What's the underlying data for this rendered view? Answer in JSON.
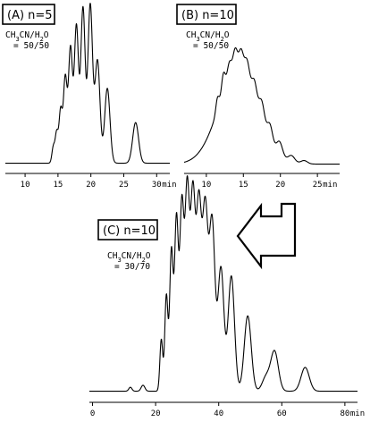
{
  "chart_data": [
    {
      "type": "line",
      "panel_label": "(A) n=5",
      "condition": {
        "line1_prefix": "CH",
        "line1_sub1": "3",
        "line1_mid": "CN/H",
        "line1_sub2": "2",
        "line1_suffix": "O",
        "line2": "= 50/50"
      },
      "xlabel": "min",
      "xlim": [
        7,
        32
      ],
      "ylim": [
        0,
        100
      ],
      "x_ticks": [
        "10",
        "15",
        "20",
        "25",
        "30"
      ],
      "x_tick_values": [
        10,
        15,
        20,
        25,
        30
      ],
      "baseline": 3,
      "peaks": [
        {
          "x": 14.3,
          "h": 10,
          "w": 0.22
        },
        {
          "x": 14.8,
          "h": 18,
          "w": 0.22
        },
        {
          "x": 15.4,
          "h": 32,
          "w": 0.25
        },
        {
          "x": 16.1,
          "h": 52,
          "w": 0.28
        },
        {
          "x": 16.9,
          "h": 70,
          "w": 0.3
        },
        {
          "x": 17.8,
          "h": 84,
          "w": 0.32
        },
        {
          "x": 18.8,
          "h": 95,
          "w": 0.33
        },
        {
          "x": 19.9,
          "h": 97,
          "w": 0.35
        },
        {
          "x": 21.0,
          "h": 63,
          "w": 0.38
        },
        {
          "x": 22.5,
          "h": 46,
          "w": 0.4
        },
        {
          "x": 26.8,
          "h": 25,
          "w": 0.45
        }
      ]
    },
    {
      "type": "line",
      "panel_label": "(B) n=10",
      "condition": {
        "line1_prefix": "CH",
        "line1_sub1": "3",
        "line1_mid": "CN/H",
        "line1_sub2": "2",
        "line1_suffix": "O",
        "line2": "= 50/50"
      },
      "xlabel": "min",
      "xlim": [
        7,
        28
      ],
      "ylim": [
        0,
        100
      ],
      "x_ticks": [
        "10",
        "15",
        "20",
        "25"
      ],
      "x_tick_values": [
        10,
        15,
        20,
        25
      ],
      "baseline": 3,
      "envelope": {
        "x": 14.3,
        "h": 72,
        "w": 2.6
      },
      "peaks": [
        {
          "x": 11.5,
          "h": 10,
          "w": 0.22
        },
        {
          "x": 12.3,
          "h": 15,
          "w": 0.25
        },
        {
          "x": 13.1,
          "h": 12,
          "w": 0.28
        },
        {
          "x": 13.9,
          "h": 16,
          "w": 0.3
        },
        {
          "x": 14.7,
          "h": 15,
          "w": 0.3
        },
        {
          "x": 15.5,
          "h": 14,
          "w": 0.32
        },
        {
          "x": 16.5,
          "h": 13,
          "w": 0.32
        },
        {
          "x": 17.5,
          "h": 14,
          "w": 0.35
        },
        {
          "x": 18.6,
          "h": 12,
          "w": 0.35
        },
        {
          "x": 19.9,
          "h": 10,
          "w": 0.4
        },
        {
          "x": 21.5,
          "h": 5,
          "w": 0.45
        },
        {
          "x": 23.2,
          "h": 2.5,
          "w": 0.45
        }
      ]
    },
    {
      "type": "line",
      "panel_label": "(C) n=10",
      "condition": {
        "line1_prefix": "CH",
        "line1_sub1": "3",
        "line1_mid": "CN/H",
        "line1_sub2": "2",
        "line1_suffix": "O",
        "line2": "= 30/70"
      },
      "xlabel": "min",
      "xlim": [
        -1,
        84
      ],
      "ylim": [
        0,
        100
      ],
      "x_ticks": [
        "0",
        "20",
        "40",
        "60",
        "80"
      ],
      "x_tick_values": [
        0,
        20,
        40,
        60,
        80
      ],
      "baseline": 2,
      "peaks": [
        {
          "x": 12.0,
          "h": 2,
          "w": 0.5
        },
        {
          "x": 16.0,
          "h": 3,
          "w": 0.6
        },
        {
          "x": 21.8,
          "h": 26,
          "w": 0.45
        },
        {
          "x": 23.4,
          "h": 48,
          "w": 0.5
        },
        {
          "x": 25.0,
          "h": 70,
          "w": 0.55
        },
        {
          "x": 26.6,
          "h": 86,
          "w": 0.6
        },
        {
          "x": 28.3,
          "h": 92,
          "w": 0.65
        },
        {
          "x": 30.0,
          "h": 100,
          "w": 0.7
        },
        {
          "x": 31.8,
          "h": 97,
          "w": 0.75
        },
        {
          "x": 33.7,
          "h": 92,
          "w": 0.8
        },
        {
          "x": 35.7,
          "h": 90,
          "w": 0.85
        },
        {
          "x": 37.9,
          "h": 85,
          "w": 0.9
        },
        {
          "x": 40.7,
          "h": 62,
          "w": 0.95
        },
        {
          "x": 44.0,
          "h": 58,
          "w": 1.0
        },
        {
          "x": 49.2,
          "h": 38,
          "w": 1.1
        },
        {
          "x": 55.0,
          "h": 7,
          "w": 1.2
        },
        {
          "x": 57.7,
          "h": 20,
          "w": 1.2
        },
        {
          "x": 67.4,
          "h": 12,
          "w": 1.3
        }
      ]
    }
  ]
}
